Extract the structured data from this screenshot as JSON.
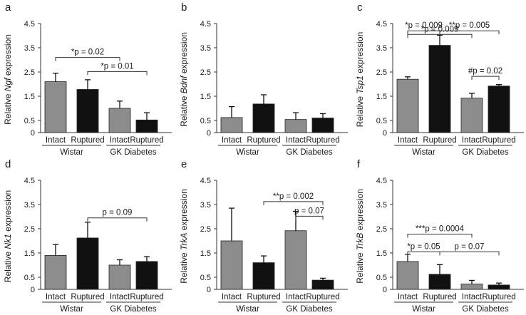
{
  "colors": {
    "intact": "#8c8c8c",
    "ruptured": "#111111",
    "axis": "#333333"
  },
  "chart_data": [
    {
      "panel": "a",
      "type": "bar",
      "gene": "Ngf",
      "ylabel_prefix": "Relative ",
      "ylabel_suffix": " expression",
      "ylim": [
        0,
        4.5
      ],
      "ticks": [
        "0",
        "0.5",
        "1.5",
        "2.5",
        "3.5",
        "4.5"
      ],
      "categories": [
        "Intact",
        "Ruptured",
        "Intact",
        "Ruptured"
      ],
      "groups": [
        "Wistar",
        "GK Diabetes"
      ],
      "values": [
        2.1,
        1.78,
        1.0,
        0.52
      ],
      "errors": [
        0.35,
        0.4,
        0.3,
        0.3
      ],
      "comparisons": [
        {
          "from": 0,
          "to": 2,
          "label": "*p = 0.02",
          "y": 3.1
        },
        {
          "from": 1,
          "to": 3,
          "label": "*p = 0.01",
          "y": 2.52
        }
      ]
    },
    {
      "panel": "b",
      "type": "bar",
      "gene": "Bdnf",
      "ylabel_prefix": "Relative ",
      "ylabel_suffix": " expression",
      "ylim": [
        0,
        4.5
      ],
      "ticks": [
        "0",
        "0.5",
        "1.5",
        "2.5",
        "3.5",
        "4.5"
      ],
      "categories": [
        "Intact",
        "Ruptured",
        "Intact",
        "Ruptured"
      ],
      "groups": [
        "Wistar",
        "GK Diabetes"
      ],
      "values": [
        0.62,
        1.18,
        0.54,
        0.6
      ],
      "errors": [
        0.45,
        0.38,
        0.28,
        0.18
      ],
      "comparisons": []
    },
    {
      "panel": "c",
      "type": "bar",
      "gene": "Tsp1",
      "ylabel_prefix": "Relative ",
      "ylabel_suffix": " expression",
      "ylim": [
        0,
        4.5
      ],
      "ticks": [
        "0",
        "0.5",
        "1.5",
        "2.5",
        "3.5",
        "4.5"
      ],
      "categories": [
        "Intact",
        "Ruptured",
        "Intact",
        "Ruptured"
      ],
      "groups": [
        "Wistar",
        "GK Diabetes"
      ],
      "values": [
        2.2,
        3.6,
        1.42,
        1.92
      ],
      "errors": [
        0.1,
        0.42,
        0.2,
        0.06
      ],
      "comparisons": [
        {
          "from": 0,
          "to": 1,
          "label": "*p = 0.009",
          "y": 4.2
        },
        {
          "from": 1,
          "to": 3,
          "label": "**p = 0.005",
          "y": 4.2
        },
        {
          "from": 0,
          "to": 2,
          "label": "*p = 0.009",
          "y": 4.05
        },
        {
          "from": 2,
          "to": 3,
          "label": "#p = 0.02",
          "y": 2.32
        }
      ]
    },
    {
      "panel": "d",
      "type": "bar",
      "gene": "Nk1",
      "ylabel_prefix": "Relative ",
      "ylabel_suffix": " expression",
      "ylim": [
        0,
        4.5
      ],
      "ticks": [
        "0",
        "0.5",
        "1.5",
        "2.5",
        "3.5",
        "4.5"
      ],
      "categories": [
        "Intact",
        "Ruptured",
        "Intact",
        "Ruptured"
      ],
      "groups": [
        "Wistar",
        "GK Diabetes"
      ],
      "values": [
        1.4,
        2.12,
        1.0,
        1.15
      ],
      "errors": [
        0.45,
        0.65,
        0.22,
        0.2
      ],
      "comparisons": [
        {
          "from": 1,
          "to": 3,
          "label": "p = 0.09",
          "y": 2.95
        }
      ]
    },
    {
      "panel": "e",
      "type": "bar",
      "gene": "TrkA",
      "ylabel_prefix": "Relative ",
      "ylabel_suffix": " expression",
      "ylim": [
        0,
        4.5
      ],
      "ticks": [
        "0",
        "0.5",
        "1.5",
        "2.5",
        "3.5",
        "4.5"
      ],
      "categories": [
        "Intact",
        "Ruptured",
        "Intact",
        "Ruptured"
      ],
      "groups": [
        "Wistar",
        "GK Diabetes"
      ],
      "values": [
        2.0,
        1.1,
        2.42,
        0.38
      ],
      "errors": [
        1.35,
        0.28,
        0.8,
        0.08
      ],
      "comparisons": [
        {
          "from": 1,
          "to": 3,
          "label": "**p = 0.002",
          "y": 3.62
        },
        {
          "from": 2,
          "to": 3,
          "label": "p = 0.07",
          "y": 3.02
        }
      ]
    },
    {
      "panel": "f",
      "type": "bar",
      "gene": "TrkB",
      "ylabel_prefix": "Relative ",
      "ylabel_suffix": " expression",
      "ylim": [
        0,
        4.5
      ],
      "ticks": [
        "0",
        "0.5",
        "1.5",
        "2.5",
        "3.5",
        "4.5"
      ],
      "categories": [
        "Intact",
        "Ruptured",
        "Intact",
        "Ruptured"
      ],
      "groups": [
        "Wistar",
        "GK Diabetes"
      ],
      "values": [
        1.15,
        0.62,
        0.22,
        0.18
      ],
      "errors": [
        0.3,
        0.4,
        0.15,
        0.08
      ],
      "comparisons": [
        {
          "from": 0,
          "to": 2,
          "label": "***p = 0.0004",
          "y": 2.28
        },
        {
          "from": 0,
          "to": 1,
          "label": "*p = 0.05",
          "y": 1.55
        },
        {
          "from": 1,
          "to": 3,
          "label": "p = 0.07",
          "y": 1.55
        }
      ]
    }
  ]
}
